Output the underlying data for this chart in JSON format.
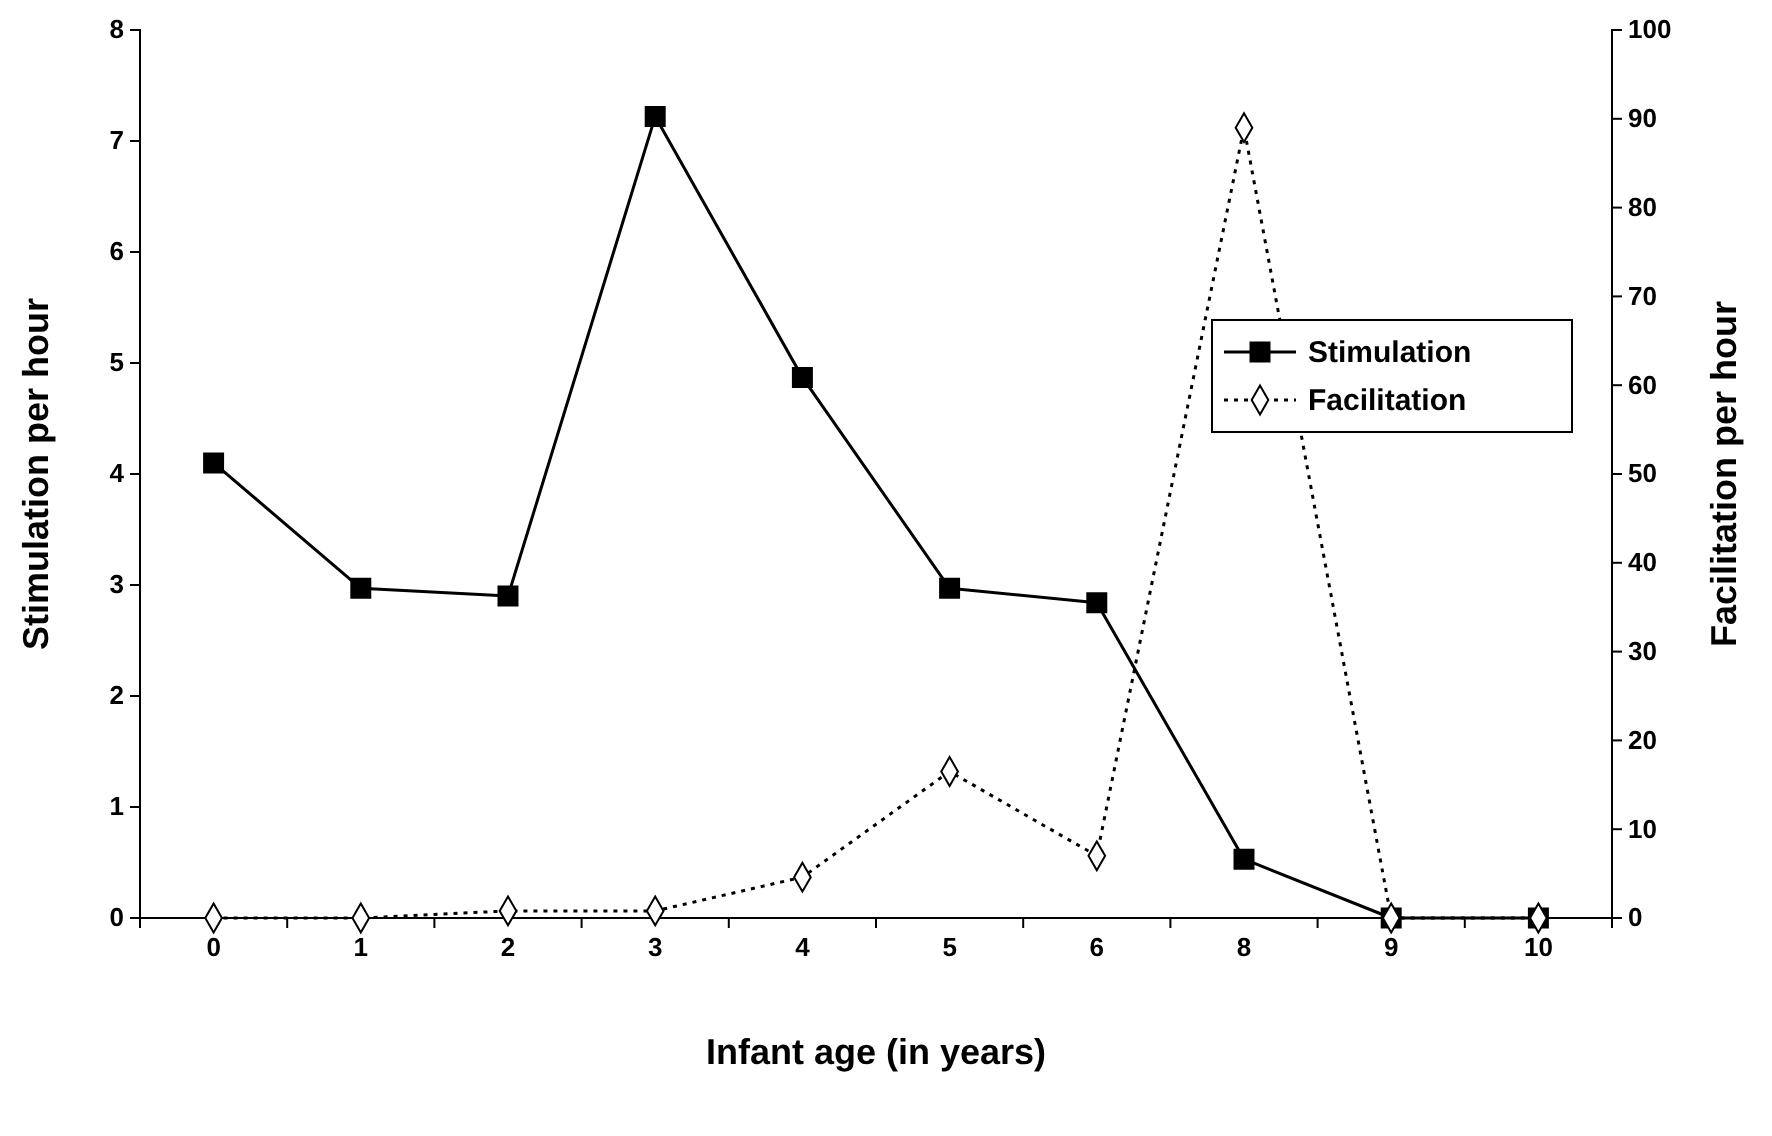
{
  "chart_data": {
    "type": "line",
    "xlabel": "Infant age (in years)",
    "ylabel": "Stimulation per hour",
    "y2label": "Facilitation per hour",
    "categories": [
      "0",
      "1",
      "2",
      "3",
      "4",
      "5",
      "6",
      "8",
      "9",
      "10"
    ],
    "ylim": [
      0,
      8
    ],
    "yticks": [
      0,
      1,
      2,
      3,
      4,
      5,
      6,
      7,
      8
    ],
    "y2lim": [
      0,
      100
    ],
    "y2ticks": [
      0,
      10,
      20,
      30,
      40,
      50,
      60,
      70,
      80,
      90,
      100
    ],
    "grid": false,
    "legend": "right",
    "series": [
      {
        "name": "Stimulation",
        "color": "#000000",
        "marker": "square",
        "line_style": "solid",
        "values": [
          4.1,
          2.97,
          2.9,
          7.22,
          4.87,
          2.97,
          2.84,
          0.53,
          0,
          0
        ]
      },
      {
        "name": "Facilitation",
        "color": "#000000",
        "marker": "diamond",
        "line_style": "dotted",
        "axis": "y2",
        "values": [
          0,
          0,
          0.8,
          0.8,
          4.6,
          16.5,
          7,
          89,
          0,
          0
        ]
      }
    ]
  }
}
